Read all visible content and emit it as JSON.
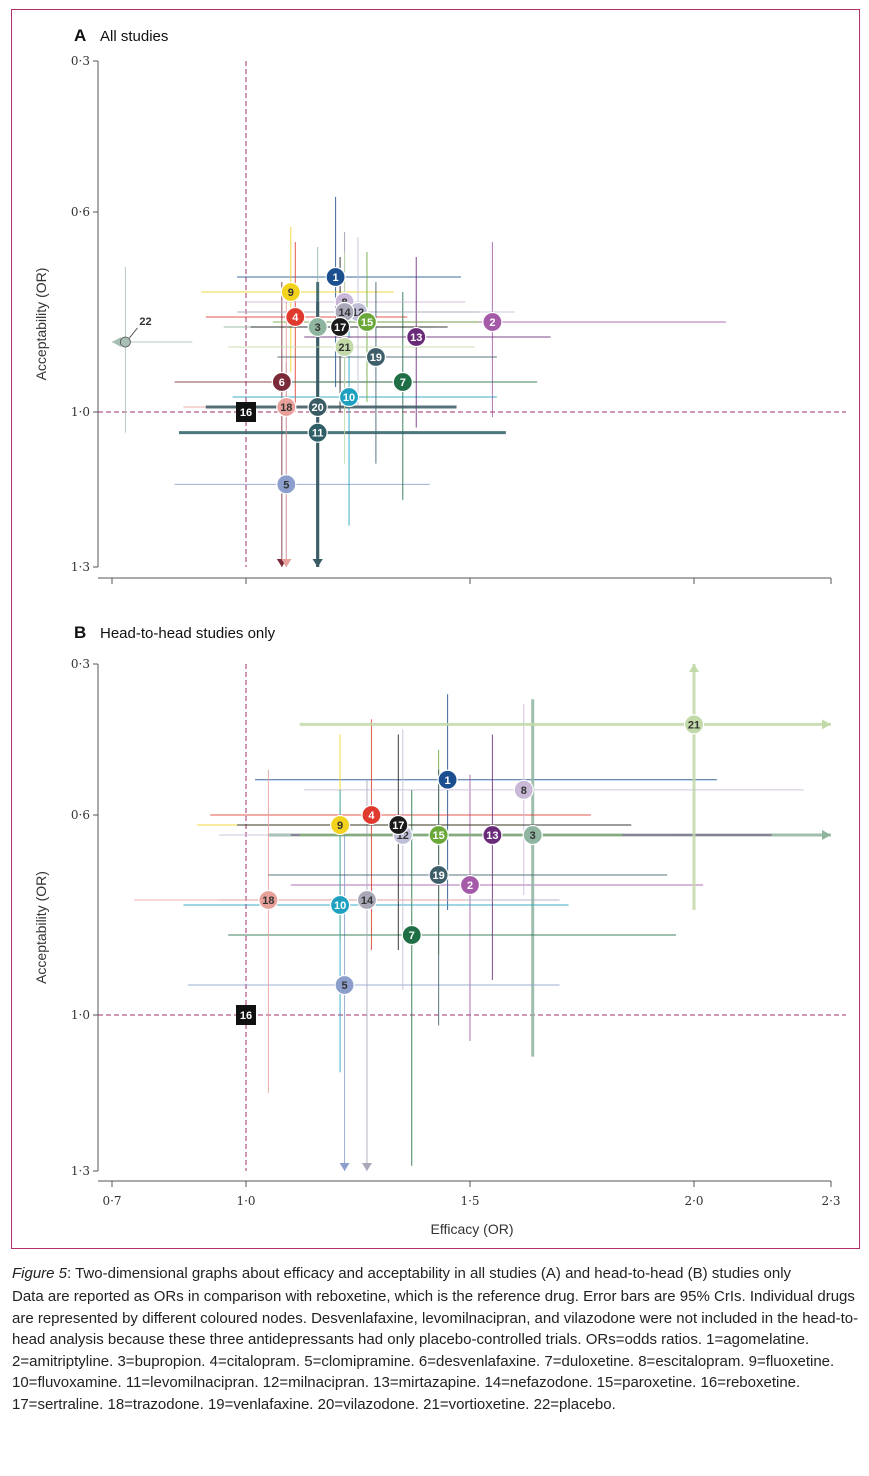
{
  "caption": {
    "figure_label": "Figure 5",
    "title": ": Two-dimensional graphs about efficacy and acceptability in all studies (A) and head-to-head (B) studies only",
    "body": "Data are reported as ORs in comparison with reboxetine, which is the reference drug. Error bars are 95% CrIs. Individual drugs are represented by different coloured nodes. Desvenlafaxine, levomilnacipran, and vilazodone were not included in the head-to-head analysis because these three antidepressants had only placebo-controlled trials. ORs=odds ratios. 1=agomelatine. 2=amitriptyline. 3=bupropion. 4=citalopram. 5=clomipramine. 6=desvenlafaxine. 7=duloxetine. 8=escitalopram. 9=fluoxetine. 10=fluvoxamine. 11=levomilnacipran. 12=milnacipran. 13=mirtazapine. 14=nefazodone. 15=paroxetine. 16=reboxetine. 17=sertraline. 18=trazodone. 19=venlafaxine. 20=vilazodone. 21=vortioxetine. 22=placebo."
  },
  "colors": {
    "frame": "#b0306a",
    "reference_line": "#a0306a",
    "1": "#1b4f8f",
    "2": "#a45aa8",
    "3": "#8fb5a0",
    "4": "#e03a2f",
    "5": "#8c9fcc",
    "6": "#7a2a38",
    "7": "#1f6e45",
    "8": "#c9b8d8",
    "9": "#f2d21c",
    "10": "#1ea0c0",
    "11": "#2e5f66",
    "12": "#c0bfd8",
    "13": "#6a2a7a",
    "14": "#a8a8b8",
    "15": "#6aa83a",
    "16": "#111111",
    "17": "#1a1a1a",
    "18": "#e8a09a",
    "19": "#3e5e6a",
    "20": "#3a5a64",
    "21": "#c2d9a8",
    "22": "#a8bfb4"
  },
  "chart_data": [
    {
      "type": "scatter",
      "panel_letter": "A",
      "title": "All studies",
      "xlabel": "",
      "ylabel": "Acceptability (OR)",
      "xticks": [
        "0·7",
        "1·0",
        "1·5",
        "2·0",
        "2·3"
      ],
      "xtick_values": [
        0.7,
        1.0,
        1.5,
        2.0,
        2.3
      ],
      "yticks": [
        "0·3",
        "0·6",
        "1·0",
        "1·3"
      ],
      "ytick_values": [
        0.3,
        0.6,
        1.0,
        1.3
      ],
      "xlim": [
        0.7,
        2.3
      ],
      "ylim": [
        0.3,
        1.3
      ],
      "y_inverted": true,
      "reference_point": {
        "x": 1.0,
        "y": 1.0
      },
      "points": [
        {
          "id": "1",
          "x": 1.2,
          "y": 0.73,
          "x_ci": [
            0.98,
            1.48
          ],
          "y_ci": [
            0.57,
            0.95
          ]
        },
        {
          "id": "2",
          "x": 1.55,
          "y": 0.82,
          "x_ci": [
            1.16,
            2.07
          ],
          "y_ci": [
            0.66,
            1.01
          ]
        },
        {
          "id": "3",
          "x": 1.16,
          "y": 0.83,
          "x_ci": [
            0.95,
            1.42
          ],
          "y_ci": [
            0.67,
            1.04
          ]
        },
        {
          "id": "4",
          "x": 1.11,
          "y": 0.81,
          "x_ci": [
            0.91,
            1.36
          ],
          "y_ci": [
            0.66,
            1.0
          ]
        },
        {
          "id": "5",
          "x": 1.09,
          "y": 1.14,
          "x_ci": [
            0.84,
            1.41
          ],
          "y_ci": [
            0.9,
            1.3
          ],
          "y_arrow": "down"
        },
        {
          "id": "6",
          "x": 1.08,
          "y": 0.94,
          "x_ci": [
            0.84,
            1.38
          ],
          "y_ci": [
            0.74,
            1.3
          ],
          "y_arrow": "down"
        },
        {
          "id": "7",
          "x": 1.35,
          "y": 0.94,
          "x_ci": [
            1.1,
            1.65
          ],
          "y_ci": [
            0.76,
            1.17
          ]
        },
        {
          "id": "8",
          "x": 1.22,
          "y": 0.78,
          "x_ci": [
            1.0,
            1.49
          ],
          "y_ci": [
            0.64,
            0.95
          ]
        },
        {
          "id": "9",
          "x": 1.1,
          "y": 0.76,
          "x_ci": [
            0.9,
            1.33
          ],
          "y_ci": [
            0.63,
            0.92
          ]
        },
        {
          "id": "10",
          "x": 1.23,
          "y": 0.97,
          "x_ci": [
            0.97,
            1.56
          ],
          "y_ci": [
            0.77,
            1.22
          ]
        },
        {
          "id": "11",
          "x": 1.16,
          "y": 1.04,
          "x_ci": [
            0.85,
            1.58
          ],
          "y_ci": [
            0.74,
            1.3
          ],
          "y_arrow": "down"
        },
        {
          "id": "12",
          "x": 1.25,
          "y": 0.8,
          "x_ci": [
            0.98,
            1.6
          ],
          "y_ci": [
            0.65,
            0.99
          ]
        },
        {
          "id": "13",
          "x": 1.38,
          "y": 0.85,
          "x_ci": [
            1.13,
            1.68
          ],
          "y_ci": [
            0.69,
            1.03
          ]
        },
        {
          "id": "14",
          "x": 1.22,
          "y": 0.8,
          "x_ci": [
            0.98,
            1.52
          ],
          "y_ci": [
            0.64,
            1.0
          ]
        },
        {
          "id": "15",
          "x": 1.27,
          "y": 0.82,
          "x_ci": [
            1.06,
            1.52
          ],
          "y_ci": [
            0.68,
            0.98
          ]
        },
        {
          "id": "16",
          "x": 1.0,
          "y": 1.0
        },
        {
          "id": "17",
          "x": 1.21,
          "y": 0.83,
          "x_ci": [
            1.01,
            1.45
          ],
          "y_ci": [
            0.69,
            1.0
          ]
        },
        {
          "id": "18",
          "x": 1.09,
          "y": 0.99,
          "x_ci": [
            0.86,
            1.36
          ],
          "y_ci": [
            0.78,
            1.3
          ],
          "y_arrow": "down"
        },
        {
          "id": "19",
          "x": 1.29,
          "y": 0.89,
          "x_ci": [
            1.07,
            1.56
          ],
          "y_ci": [
            0.74,
            1.1
          ]
        },
        {
          "id": "20",
          "x": 1.16,
          "y": 0.99,
          "x_ci": [
            0.91,
            1.47
          ],
          "y_ci": [
            0.78,
            1.3
          ],
          "y_arrow": "down"
        },
        {
          "id": "21",
          "x": 1.22,
          "y": 0.87,
          "x_ci": [
            0.96,
            1.51
          ],
          "y_ci": [
            0.68,
            1.1
          ]
        },
        {
          "id": "22",
          "x": 0.73,
          "y": 0.86,
          "x_ci": [
            0.7,
            0.88
          ],
          "y_ci": [
            0.71,
            1.04
          ],
          "x_arrow": "left",
          "label_outside": true
        }
      ]
    },
    {
      "type": "scatter",
      "panel_letter": "B",
      "title": "Head-to-head studies only",
      "xlabel": "Efficacy (OR)",
      "ylabel": "Acceptability (OR)",
      "xticks": [
        "0·7",
        "1·0",
        "1·5",
        "2·0",
        "2·3"
      ],
      "xtick_values": [
        0.7,
        1.0,
        1.5,
        2.0,
        2.3
      ],
      "yticks": [
        "0·3",
        "0·6",
        "1·0",
        "1·3"
      ],
      "ytick_values": [
        0.3,
        0.6,
        1.0,
        1.3
      ],
      "xlim": [
        0.7,
        2.3
      ],
      "ylim": [
        0.3,
        1.3
      ],
      "y_inverted": true,
      "reference_point": {
        "x": 1.0,
        "y": 1.0
      },
      "points": [
        {
          "id": "1",
          "x": 1.45,
          "y": 0.53,
          "x_ci": [
            1.02,
            2.05
          ],
          "y_ci": [
            0.36,
            0.79
          ]
        },
        {
          "id": "2",
          "x": 1.5,
          "y": 0.74,
          "x_ci": [
            1.1,
            2.02
          ],
          "y_ci": [
            0.52,
            1.05
          ]
        },
        {
          "id": "3",
          "x": 1.64,
          "y": 0.64,
          "x_ci": [
            1.05,
            2.3
          ],
          "y_ci": [
            0.37,
            1.08
          ],
          "x_arrow": "right"
        },
        {
          "id": "4",
          "x": 1.28,
          "y": 0.6,
          "x_ci": [
            0.92,
            1.77
          ],
          "y_ci": [
            0.41,
            0.87
          ]
        },
        {
          "id": "5",
          "x": 1.22,
          "y": 0.94,
          "x_ci": [
            0.87,
            1.7
          ],
          "y_ci": [
            0.63,
            1.3
          ],
          "y_arrow": "down"
        },
        {
          "id": "6",
          "x": 1.0,
          "y": 1.0,
          "hidden": true
        },
        {
          "id": "7",
          "x": 1.37,
          "y": 0.84,
          "x_ci": [
            0.96,
            1.96
          ],
          "y_ci": [
            0.55,
            1.29
          ]
        },
        {
          "id": "8",
          "x": 1.62,
          "y": 0.55,
          "x_ci": [
            1.13,
            2.24
          ],
          "y_ci": [
            0.38,
            0.76
          ]
        },
        {
          "id": "9",
          "x": 1.21,
          "y": 0.62,
          "x_ci": [
            0.89,
            1.62
          ],
          "y_ci": [
            0.44,
            0.85
          ]
        },
        {
          "id": "10",
          "x": 1.21,
          "y": 0.78,
          "x_ci": [
            0.86,
            1.72
          ],
          "y_ci": [
            0.55,
            1.11
          ]
        },
        {
          "id": "11",
          "x": 1.0,
          "y": 1.0,
          "hidden": true
        },
        {
          "id": "12",
          "x": 1.35,
          "y": 0.64,
          "x_ci": [
            0.94,
            1.96
          ],
          "y_ci": [
            0.43,
            0.95
          ]
        },
        {
          "id": "13",
          "x": 1.55,
          "y": 0.64,
          "x_ci": [
            1.1,
            2.17
          ],
          "y_ci": [
            0.44,
            0.93
          ]
        },
        {
          "id": "14",
          "x": 1.27,
          "y": 0.77,
          "x_ci": [
            0.94,
            1.7
          ],
          "y_ci": [
            0.53,
            1.3
          ],
          "y_arrow": "down"
        },
        {
          "id": "15",
          "x": 1.43,
          "y": 0.64,
          "x_ci": [
            1.12,
            1.84
          ],
          "y_ci": [
            0.47,
            0.88
          ]
        },
        {
          "id": "16",
          "x": 1.0,
          "y": 1.0
        },
        {
          "id": "17",
          "x": 1.34,
          "y": 0.62,
          "x_ci": [
            0.98,
            1.86
          ],
          "y_ci": [
            0.44,
            0.87
          ]
        },
        {
          "id": "18",
          "x": 1.05,
          "y": 0.77,
          "x_ci": [
            0.75,
            1.49
          ],
          "y_ci": [
            0.51,
            1.15
          ]
        },
        {
          "id": "19",
          "x": 1.43,
          "y": 0.72,
          "x_ci": [
            1.05,
            1.94
          ],
          "y_ci": [
            0.51,
            1.02
          ]
        },
        {
          "id": "20",
          "x": 1.0,
          "y": 1.0,
          "hidden": true
        },
        {
          "id": "21",
          "x": 2.0,
          "y": 0.42,
          "x_ci": [
            1.12,
            2.3
          ],
          "y_ci": [
            0.3,
            0.79
          ],
          "x_arrow": "right",
          "y_arrow": "up"
        }
      ]
    }
  ]
}
